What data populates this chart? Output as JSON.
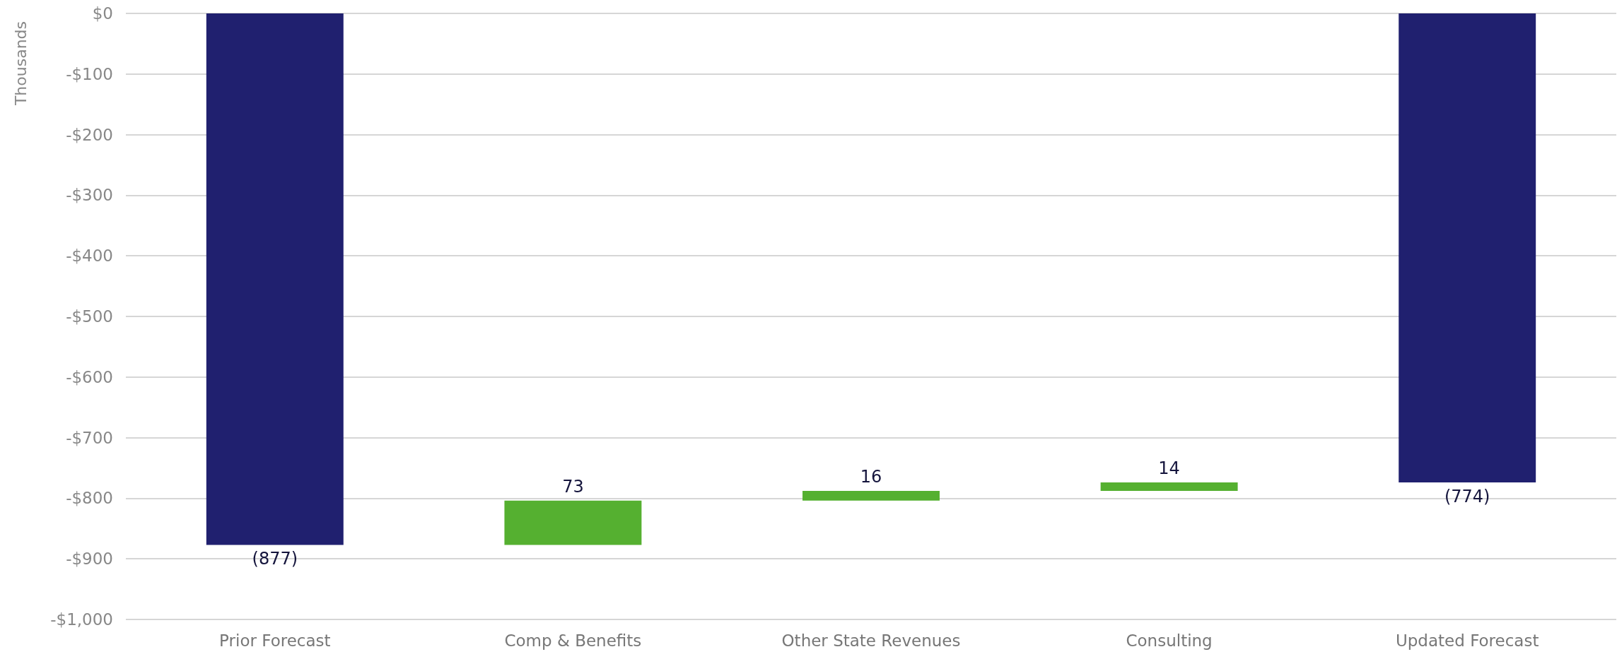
{
  "chart_data": {
    "type": "bar",
    "ylabel": "Thousands",
    "categories": [
      "Prior Forecast",
      "Comp & Benefits",
      "Other State Revenues",
      "Consulting",
      "Updated Forecast"
    ],
    "values": [
      -877,
      73,
      16,
      14,
      -774
    ],
    "base": [
      0,
      -877,
      -804,
      -788,
      0
    ],
    "colors": [
      "#20206f",
      "#55b030",
      "#55b030",
      "#55b030",
      "#20206f"
    ],
    "value_labels": [
      "(877)",
      "73",
      "16",
      "14",
      "(774)"
    ],
    "ylim": [
      -1000,
      0
    ],
    "yticks": [
      {
        "value": 0,
        "label": "$0"
      },
      {
        "value": -100,
        "label": "-$100"
      },
      {
        "value": -200,
        "label": "-$200"
      },
      {
        "value": -300,
        "label": "-$300"
      },
      {
        "value": -400,
        "label": "-$400"
      },
      {
        "value": -500,
        "label": "-$500"
      },
      {
        "value": -600,
        "label": "-$600"
      },
      {
        "value": -700,
        "label": "-$700"
      },
      {
        "value": -800,
        "label": "-$800"
      },
      {
        "value": -900,
        "label": "-$900"
      },
      {
        "value": -1000,
        "label": "-$1,000"
      }
    ],
    "grid": "y"
  }
}
